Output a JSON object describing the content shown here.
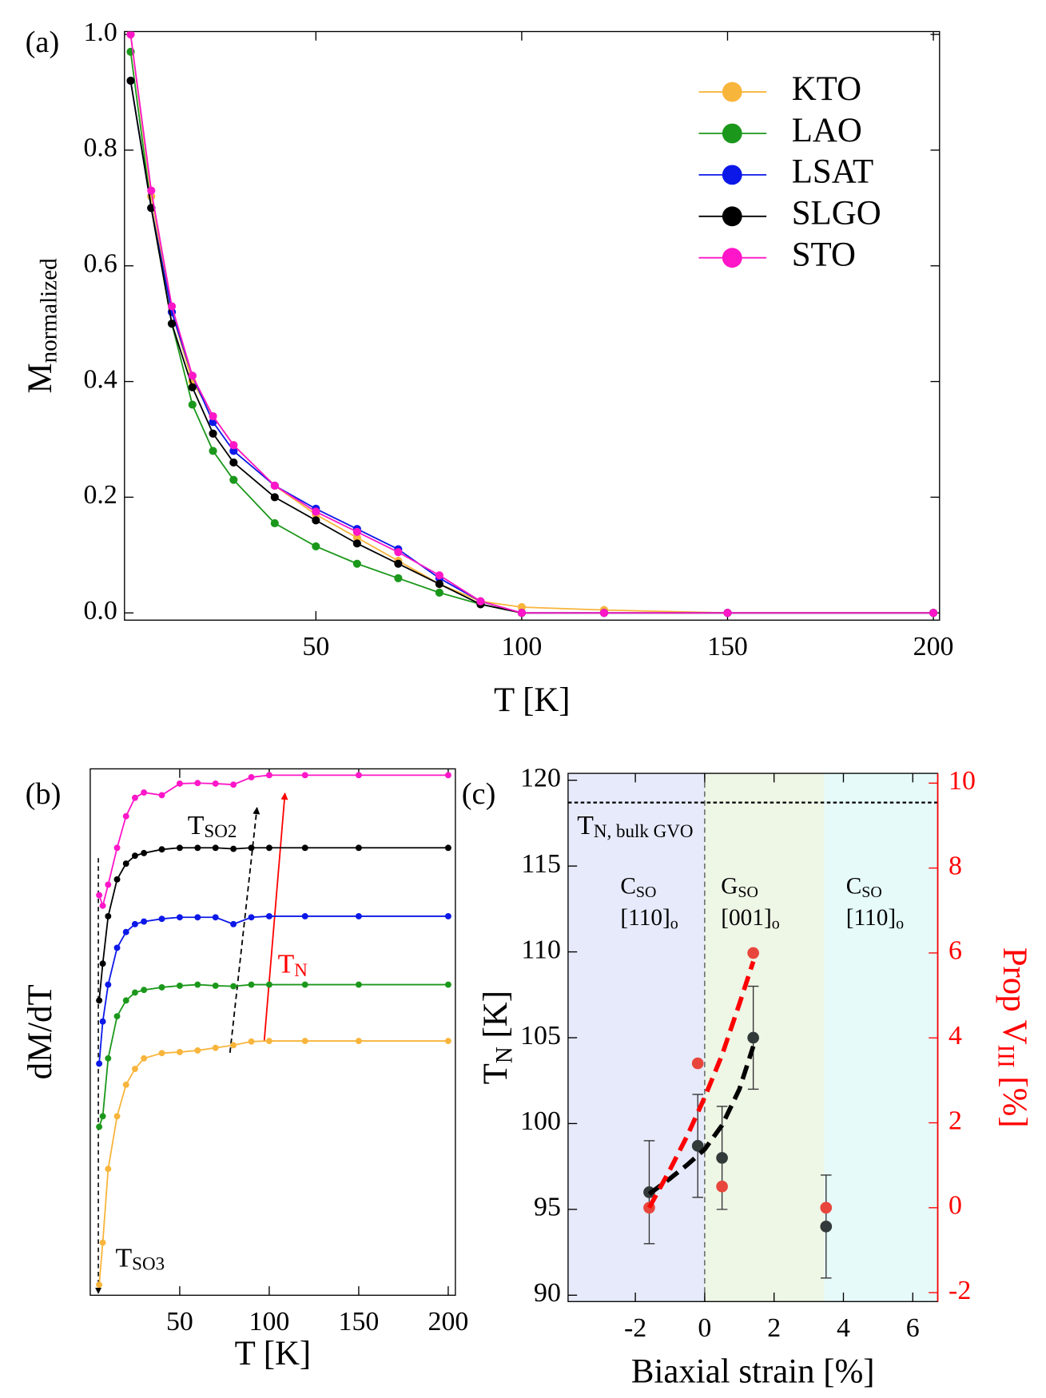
{
  "chart_data": [
    {
      "type": "line",
      "panel_label": "(a)",
      "xlabel": "T [K]",
      "ylabel": [
        "M",
        "normalized"
      ],
      "x": [
        5,
        10,
        15,
        20,
        25,
        30,
        40,
        50,
        60,
        70,
        80,
        90,
        100,
        120,
        150,
        200
      ],
      "xlim": [
        3.5,
        201.5
      ],
      "xticks": [
        50,
        100,
        150,
        200
      ],
      "ylim": [
        -0.0125,
        1.005
      ],
      "yticks": [
        {
          "value": 0,
          "label": "0.0"
        },
        0.2,
        0.4,
        0.6,
        0.8,
        {
          "value": 1,
          "label": "1.0"
        }
      ],
      "legend": "upper right",
      "series": [
        {
          "name": "KTO",
          "color": "#f8b53c",
          "values": [
            1.0,
            0.72,
            0.52,
            0.4,
            0.34,
            0.29,
            0.22,
            0.17,
            0.13,
            0.09,
            0.05,
            0.02,
            0.01,
            0.005,
            0.0,
            0.0
          ]
        },
        {
          "name": "LAO",
          "color": "#1b981b",
          "values": [
            0.97,
            0.7,
            0.5,
            0.36,
            0.28,
            0.23,
            0.155,
            0.115,
            0.085,
            0.06,
            0.035,
            0.015,
            0.0,
            0.0,
            0.0,
            0.0
          ]
        },
        {
          "name": "LSAT",
          "color": "#0c18e8",
          "values": [
            0.92,
            0.7,
            0.52,
            0.41,
            0.33,
            0.28,
            0.22,
            0.18,
            0.145,
            0.11,
            0.06,
            0.02,
            0.0,
            0.0,
            0.0,
            0.0
          ]
        },
        {
          "name": "SLGO",
          "color": "#000000",
          "values": [
            0.92,
            0.7,
            0.5,
            0.39,
            0.31,
            0.26,
            0.2,
            0.16,
            0.12,
            0.085,
            0.05,
            0.015,
            0.0,
            0.0,
            0.0,
            0.0
          ]
        },
        {
          "name": "STO",
          "color": "#ff16c8",
          "values": [
            1.0,
            0.73,
            0.53,
            0.41,
            0.34,
            0.29,
            0.22,
            0.175,
            0.14,
            0.105,
            0.065,
            0.02,
            0.0,
            0.0,
            0.0,
            0.0
          ]
        }
      ]
    },
    {
      "type": "line",
      "panel_label": "(b)",
      "xlabel": "T [K]",
      "ylabel": [
        "dM/dT"
      ],
      "x": [
        5,
        7,
        10,
        15,
        20,
        25,
        30,
        40,
        50,
        60,
        70,
        80,
        90,
        100,
        120,
        150,
        200
      ],
      "xlim": [
        0,
        204
      ],
      "xticks": [
        50,
        100,
        150,
        200
      ],
      "ylim": [
        0,
        10
      ],
      "annotations": [
        {
          "text": [
            "T",
            "SO2"
          ],
          "color": "#000000"
        },
        {
          "text": [
            "T",
            "N"
          ],
          "color": "#ff0000"
        },
        {
          "text": [
            "T",
            "SO3"
          ],
          "color": "#000000"
        }
      ],
      "series": [
        {
          "color": "#ff16c8",
          "values": [
            7.6,
            7.4,
            7.8,
            8.5,
            9.1,
            9.45,
            9.55,
            9.5,
            9.72,
            9.73,
            9.72,
            9.7,
            9.84,
            9.88,
            9.88,
            9.88,
            9.88
          ]
        },
        {
          "color": "#000000",
          "values": [
            5.6,
            6.3,
            7.2,
            7.9,
            8.2,
            8.35,
            8.4,
            8.47,
            8.5,
            8.5,
            8.5,
            8.48,
            8.5,
            8.5,
            8.5,
            8.5,
            8.5
          ]
        },
        {
          "color": "#0c18e8",
          "values": [
            4.4,
            5.2,
            5.9,
            6.6,
            6.9,
            7.05,
            7.1,
            7.15,
            7.18,
            7.18,
            7.18,
            7.05,
            7.18,
            7.2,
            7.2,
            7.2,
            7.2
          ]
        },
        {
          "color": "#1b981b",
          "values": [
            3.2,
            3.4,
            4.5,
            5.3,
            5.6,
            5.75,
            5.8,
            5.85,
            5.88,
            5.9,
            5.88,
            5.87,
            5.9,
            5.9,
            5.9,
            5.9,
            5.9
          ]
        },
        {
          "color": "#f8b53c",
          "values": [
            0.2,
            1.0,
            2.4,
            3.4,
            4.0,
            4.3,
            4.5,
            4.6,
            4.62,
            4.65,
            4.7,
            4.75,
            4.82,
            4.83,
            4.83,
            4.83,
            4.83
          ]
        }
      ]
    },
    {
      "type": "scatter",
      "panel_label": "(c)",
      "xlabel": "Biaxial strain [%]",
      "ylabel": [
        "T",
        "N",
        " [K]"
      ],
      "y2label": [
        "Prop V",
        "III",
        " [%]"
      ],
      "xlim": [
        -3.94,
        6.72
      ],
      "xticks": [
        -2,
        0,
        2,
        4,
        6
      ],
      "ylim": [
        89.63,
        120.4
      ],
      "yticks": [
        90,
        95,
        100,
        105,
        110,
        115,
        120
      ],
      "y2lim": [
        -2.21,
        10.23
      ],
      "y2ticks": [
        -2,
        0,
        2,
        4,
        6,
        8,
        10
      ],
      "y2_color": "#ff0000",
      "hline": 118.7,
      "regions": [
        {
          "from": -3.94,
          "to": 0,
          "color": "#e6eafa",
          "label": [
            [
              "C",
              "SO"
            ],
            [
              "[110]",
              "o"
            ]
          ]
        },
        {
          "from": 0,
          "to": 3.45,
          "color": "#eef6e6",
          "label": [
            [
              "G",
              "SO"
            ],
            [
              "[001]",
              "o"
            ]
          ]
        },
        {
          "from": 3.45,
          "to": 6.72,
          "color": "#e6fafa",
          "label": [
            [
              "C",
              "SO"
            ],
            [
              "[110]",
              "o"
            ]
          ]
        }
      ],
      "annotations": [
        {
          "text": [
            "T",
            "N, bulk GVO"
          ],
          "color": "#000000"
        }
      ],
      "series": [
        {
          "color": "#333a3a",
          "x": [
            -1.6,
            -0.2,
            0.5,
            1.4,
            3.5
          ],
          "values": [
            96,
            98.7,
            98,
            105,
            94
          ],
          "errors": [
            3,
            3,
            3,
            3,
            3
          ]
        },
        {
          "color": "#e8463c",
          "axis": "y2",
          "x": [
            -1.6,
            -0.2,
            0.5,
            1.4,
            3.5
          ],
          "values": [
            0,
            3.4,
            0.5,
            6,
            0
          ]
        },
        {
          "color": "#000000",
          "dashed": true,
          "x": [
            -1.6,
            -1,
            -0.5,
            0,
            0.5,
            1,
            1.4
          ],
          "values": [
            95.9,
            96.8,
            97.6,
            98.5,
            99.9,
            102,
            104.5
          ]
        },
        {
          "color": "#ff0000",
          "dashed": true,
          "axis": "y2",
          "x": [
            -1.6,
            -1,
            -0.5,
            0,
            0.5,
            1,
            1.4
          ],
          "values": [
            0,
            0.9,
            1.7,
            2.6,
            3.6,
            4.8,
            5.8
          ]
        }
      ]
    }
  ]
}
